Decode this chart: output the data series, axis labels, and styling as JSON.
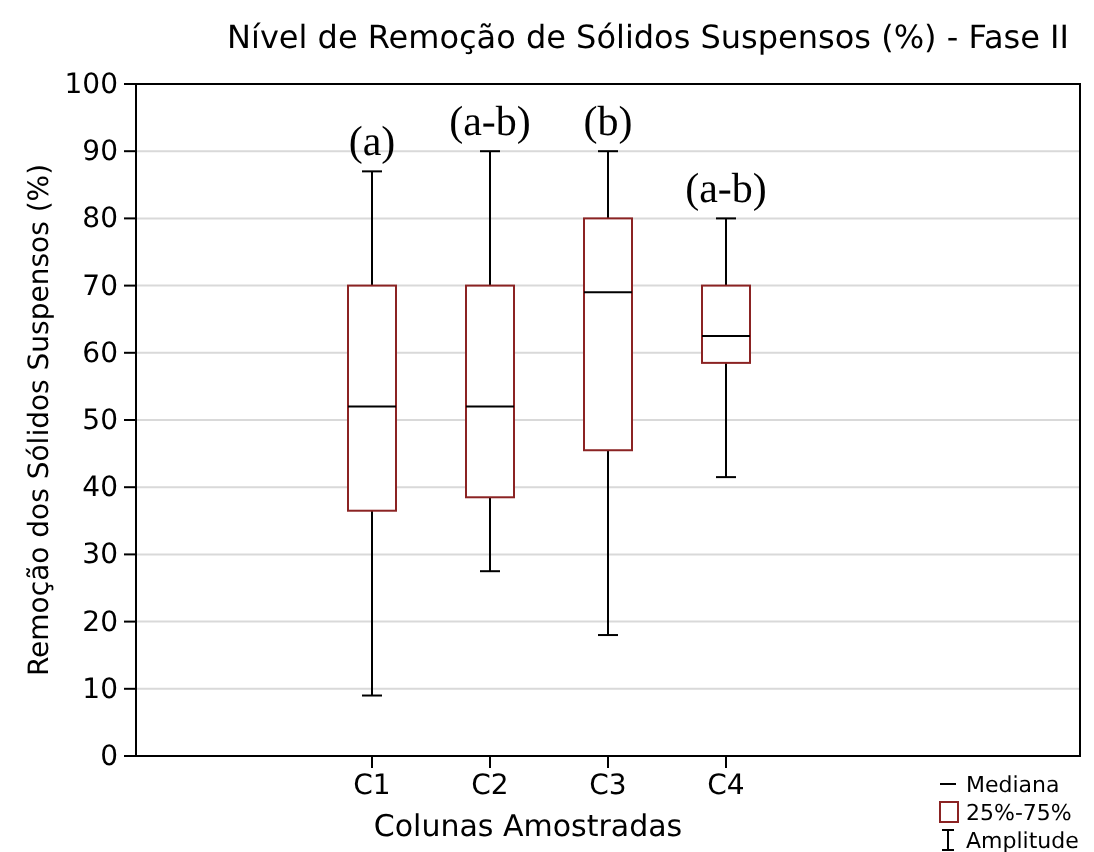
{
  "chart_data": {
    "type": "box",
    "title": "Nível de Remoção de Sólidos Suspensos (%) - Fase II",
    "xlabel": "Colunas Amostradas",
    "ylabel": "Remoção dos Sólidos Suspensos (%)",
    "categories": [
      "C1",
      "C2",
      "C3",
      "C4"
    ],
    "boxes": [
      {
        "low": 9,
        "q1": 36.5,
        "median": 52,
        "q3": 70,
        "high": 87
      },
      {
        "low": 27.5,
        "q1": 38.5,
        "median": 52,
        "q3": 70,
        "high": 90
      },
      {
        "low": 18,
        "q1": 45.5,
        "median": 69,
        "q3": 80,
        "high": 90
      },
      {
        "low": 41.5,
        "q1": 58.5,
        "median": 62.5,
        "q3": 70,
        "high": 80
      }
    ],
    "color": "#8b2323",
    "ylim": [
      0,
      100
    ],
    "yticks": [
      0,
      10,
      20,
      30,
      40,
      50,
      60,
      70,
      80,
      90,
      100
    ],
    "grid": "y",
    "annotations": [
      "(a)",
      "(a-b)",
      "(b)",
      "(a-b)",
      "Mediana",
      "25%-75%",
      "Amplitude"
    ]
  }
}
